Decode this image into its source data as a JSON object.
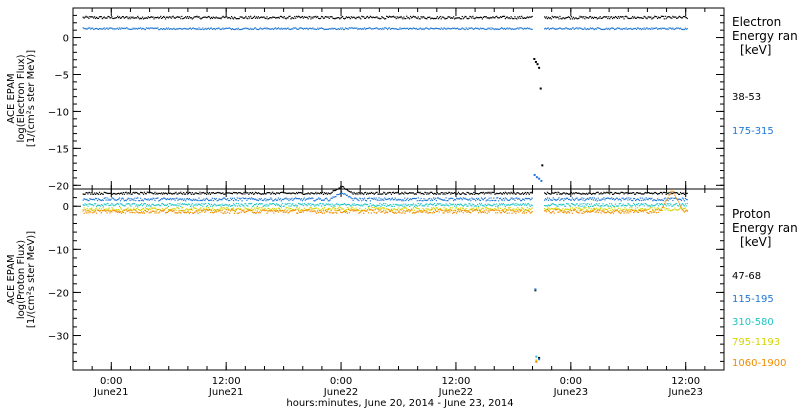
{
  "chart_data": [
    {
      "type": "scatter",
      "panel": "electron",
      "ylabel": [
        "ACE EPAM",
        "log(Electron Flux)",
        "[1/(cm²s ster MeV)]"
      ],
      "ylim": [
        -20.5,
        4
      ],
      "yticks": [
        0,
        -5,
        -10,
        -15,
        -20
      ],
      "legend": {
        "title": [
          "Electron",
          "Energy ran",
          "[keV]"
        ],
        "entries": [
          "38-53",
          "175-315"
        ]
      },
      "series": [
        {
          "name": "38-53",
          "color": "#000000",
          "level": 2.7,
          "noise": 0.18,
          "gap_values": [
            -2.9,
            -3.3,
            -3.6,
            -4.1,
            -6.9,
            -17.3
          ]
        },
        {
          "name": "175-315",
          "color": "#1f77d4",
          "level": 1.2,
          "noise": 0.12,
          "gap_values": [
            -18.6,
            -18.9,
            -19.1,
            -19.4
          ]
        }
      ]
    },
    {
      "type": "scatter",
      "panel": "proton",
      "ylabel": [
        "ACE EPAM",
        "log(Proton Flux)",
        "[1/(cm²s ster MeV)]"
      ],
      "ylim": [
        -38,
        4
      ],
      "yticks": [
        0,
        -10,
        -20,
        -30
      ],
      "legend": {
        "title": [
          "Proton",
          "Energy ran",
          "[keV]"
        ],
        "entries": [
          "47-68",
          "115-195",
          "310-580",
          "795-1193",
          "1060-1900"
        ]
      },
      "series": [
        {
          "name": "47-68",
          "color": "#000000",
          "level": 3.0,
          "noise": 0.25,
          "gap_values": [
            -19.5,
            -35.2
          ]
        },
        {
          "name": "115-195",
          "color": "#1f77d4",
          "level": 1.6,
          "noise": 0.35,
          "gap_values": [
            -19.3,
            -35.5
          ]
        },
        {
          "name": "310-580",
          "color": "#22c4c4",
          "level": 0.3,
          "noise": 0.35,
          "gap_values": [
            -34.9
          ]
        },
        {
          "name": "795-1193",
          "color": "#d4d400",
          "level": -0.7,
          "noise": 0.4,
          "gap_values": [
            -35.8
          ]
        },
        {
          "name": "1060-1900",
          "color": "#f08c00",
          "level": -1.2,
          "noise": 0.45,
          "gap_values": [
            -36.1
          ]
        }
      ]
    }
  ],
  "x_axis": {
    "range": [
      "2014-06-20T20:00",
      "2014-06-23T16:00"
    ],
    "data_start": "2014-06-20T21:00",
    "data_end": "2014-06-23T12:10",
    "gap": [
      "2014-06-22T20:00",
      "2014-06-22T21:10"
    ],
    "ticks": [
      {
        "time": "2014-06-21T00:00",
        "hour": "0:00",
        "date": "June21"
      },
      {
        "time": "2014-06-21T12:00",
        "hour": "12:00",
        "date": "June21"
      },
      {
        "time": "2014-06-22T00:00",
        "hour": "0:00",
        "date": "June22"
      },
      {
        "time": "2014-06-22T12:00",
        "hour": "12:00",
        "date": "June22"
      },
      {
        "time": "2014-06-23T00:00",
        "hour": "0:00",
        "date": "June23"
      },
      {
        "time": "2014-06-23T12:00",
        "hour": "12:00",
        "date": "June23"
      }
    ],
    "label": "hours:minutes, June 20, 2014 - June 23, 2014"
  },
  "events": [
    {
      "panel": "proton",
      "series": "47-68",
      "time": "2014-06-22T00:00",
      "peak": 4.6
    },
    {
      "panel": "proton",
      "series": "115-195",
      "time": "2014-06-22T00:00",
      "peak": 3.2
    },
    {
      "panel": "proton",
      "series": "1060-1900",
      "time": "2014-06-23T10:30",
      "peak": 3.8
    }
  ]
}
